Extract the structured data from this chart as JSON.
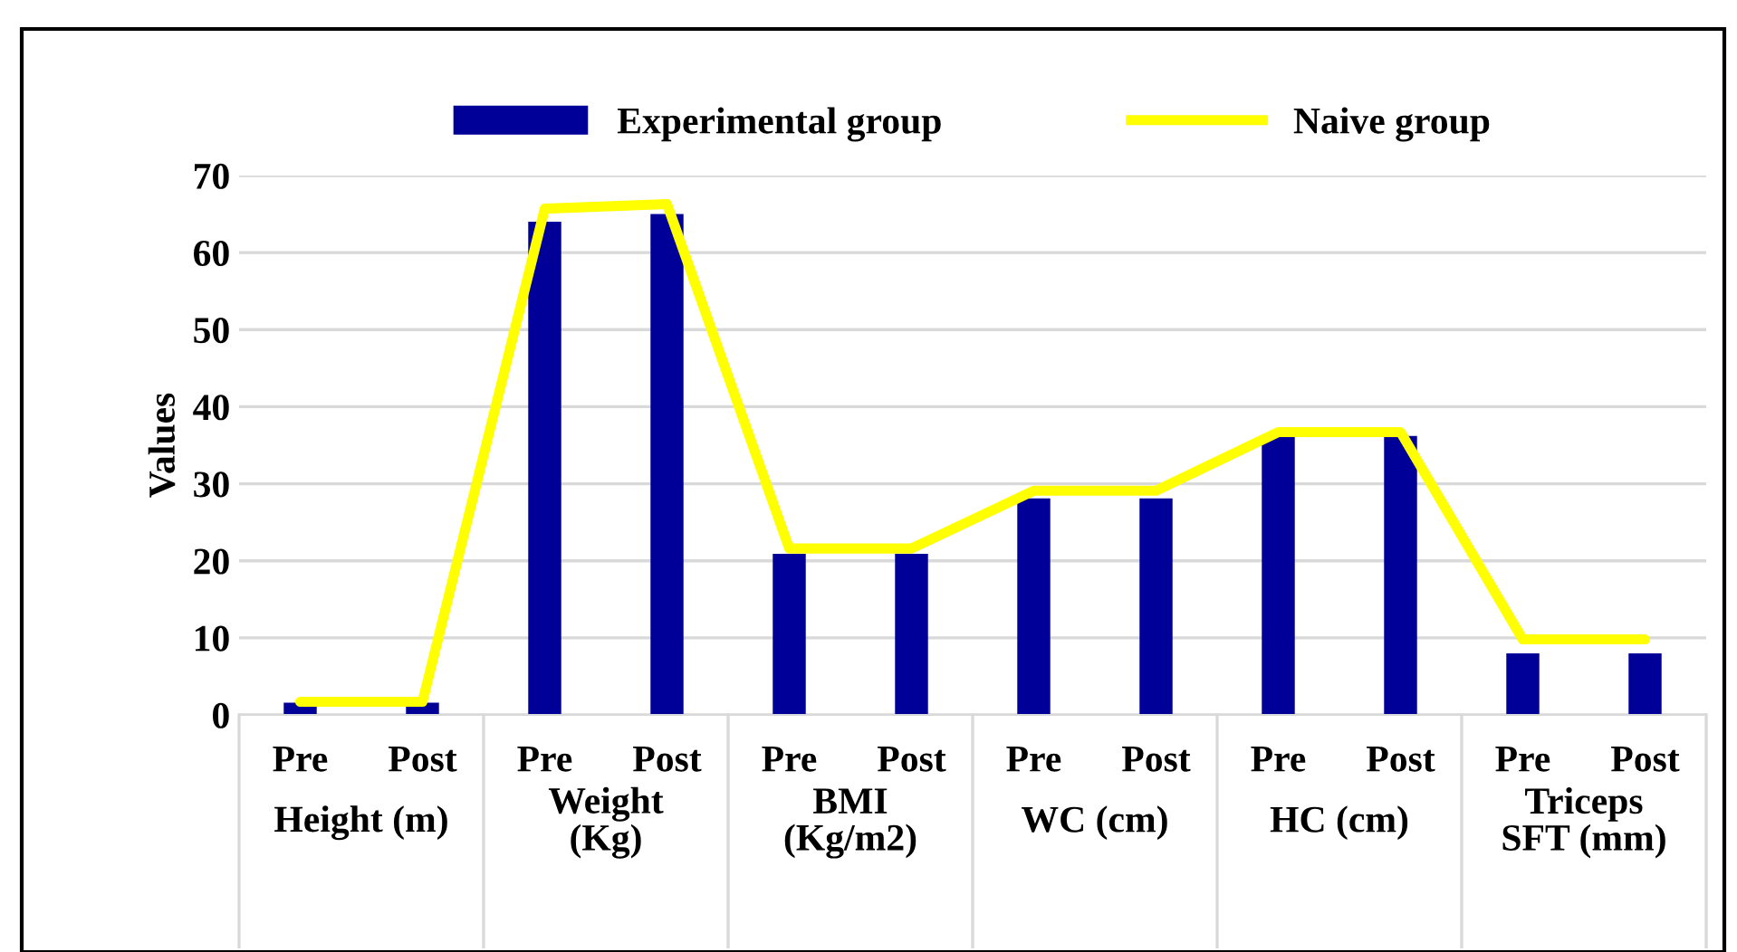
{
  "chart_data": {
    "type": "bar",
    "ylabel": "Values",
    "categories": [
      "Pre",
      "Post",
      "Pre",
      "Post",
      "Pre",
      "Post",
      "Pre",
      "Post",
      "Pre",
      "Post",
      "Pre",
      "Post"
    ],
    "series": [
      {
        "name": "Experimental group",
        "color": "#000099",
        "values": [
          1.6,
          1.6,
          64,
          65,
          20.9,
          20.9,
          28.1,
          28.1,
          36.2,
          36.2,
          8,
          8
        ]
      },
      {
        "name": "Naive group",
        "type": "line",
        "color": "#ffff00",
        "values": [
          1.7,
          1.7,
          65.7,
          66.3,
          21.6,
          21.6,
          29.1,
          29.1,
          36.7,
          36.7,
          9.8,
          9.8
        ]
      }
    ],
    "annotations": [
      "Height (m)",
      "Weight\n(Kg)",
      "BMI\n(Kg/m2)",
      "WC (cm)",
      "HC (cm)",
      "Triceps\nSFT (mm)"
    ],
    "ylim": [
      0,
      70
    ],
    "yticks": [
      0,
      10,
      20,
      30,
      40,
      50,
      60,
      70
    ],
    "grid": "y",
    "legend": "top",
    "marker": "none",
    "line_style": "solid"
  }
}
